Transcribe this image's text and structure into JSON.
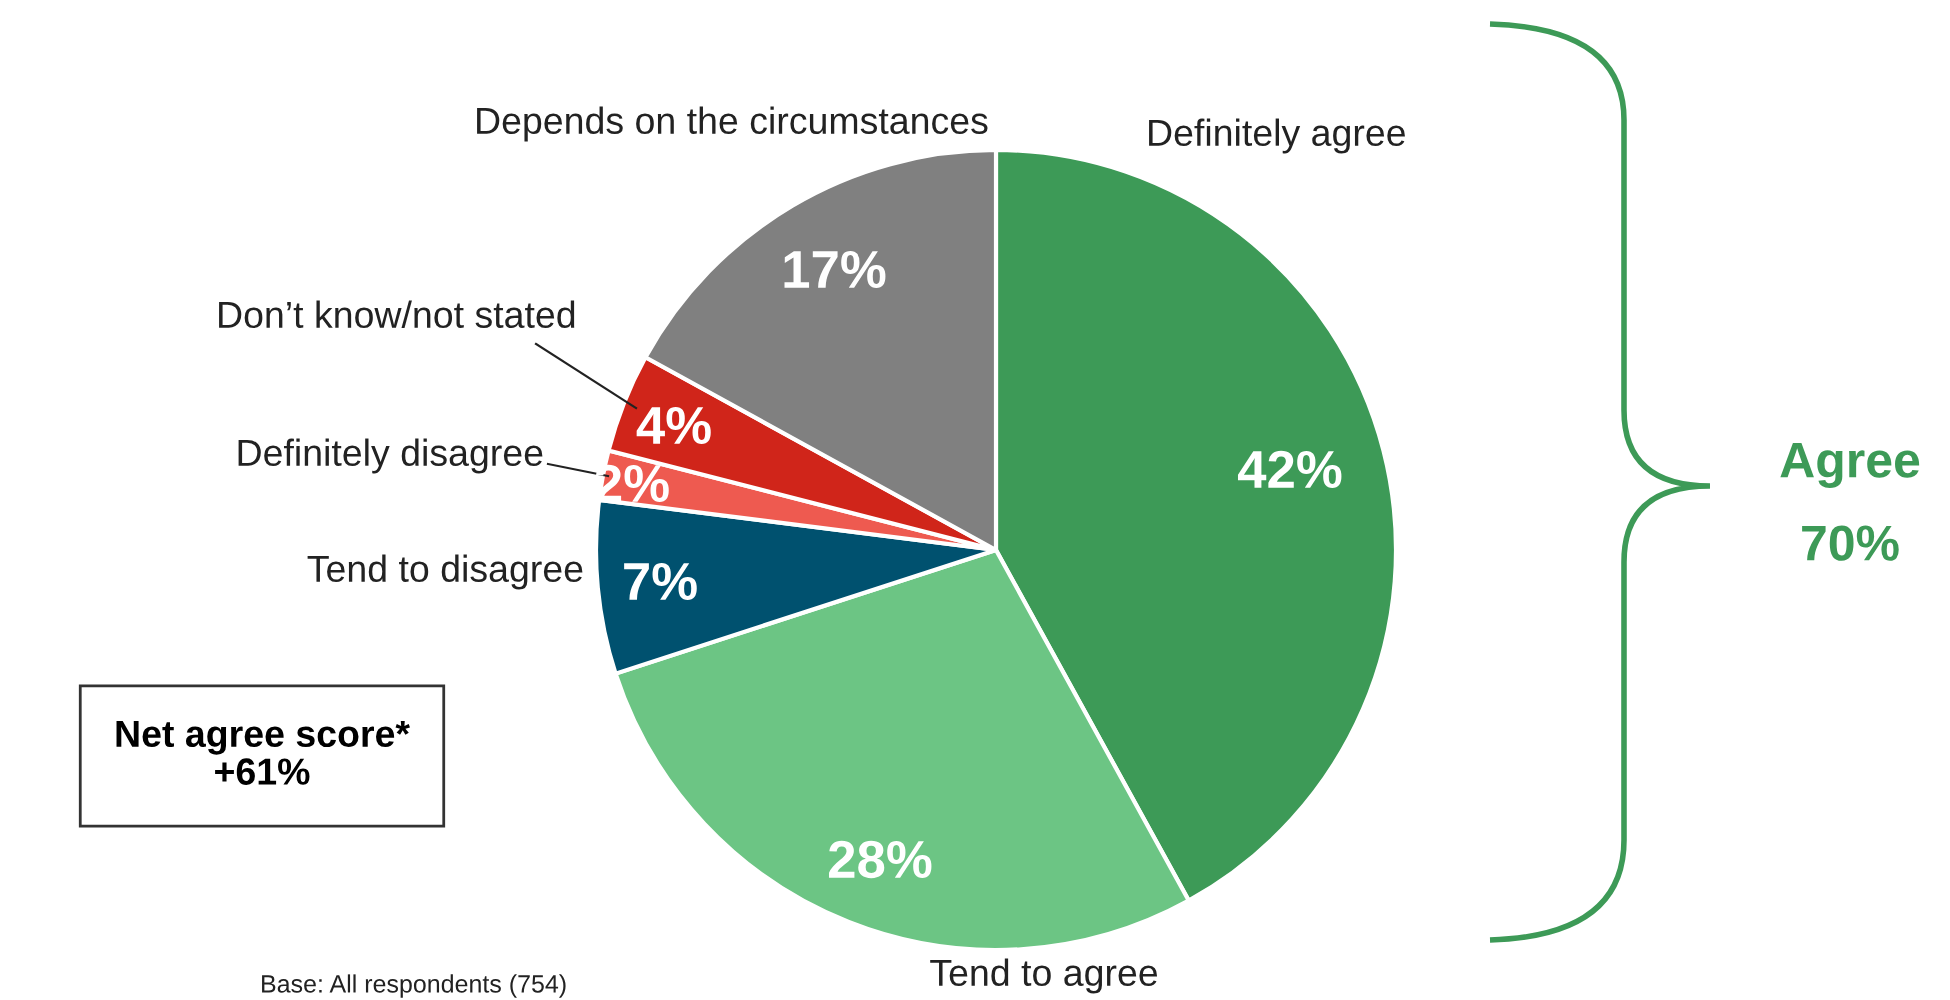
{
  "chart_data": {
    "type": "pie",
    "categories": [
      "Definitely agree",
      "Tend to agree",
      "Tend to disagree",
      "Definitely disagree",
      "Don’t know/not stated",
      "Depends on the circumstances"
    ],
    "values": [
      42,
      28,
      7,
      2,
      4,
      17
    ],
    "colors": [
      "#3d9a57",
      "#6cc584",
      "#00516f",
      "#ee5a50",
      "#d0251a",
      "#808080"
    ],
    "value_labels": [
      "42%",
      "28%",
      "7%",
      "2%",
      "4%",
      "17%"
    ],
    "annotations": [
      "Agree\n70%",
      "Net agree score*\n+61%",
      "Base: All respondents (754)"
    ]
  }
}
